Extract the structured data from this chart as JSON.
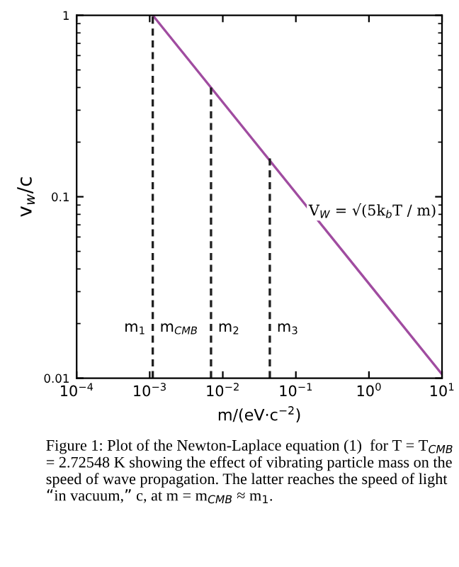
{
  "chart_data": {
    "type": "line",
    "xlabel": "m/(eV·c$^{−2}$)",
    "ylabel": "v$_{w}$/c",
    "log": "xy",
    "xlim": [
      0.0001,
      10
    ],
    "ylim": [
      0.01,
      1
    ],
    "xticks": [
      {
        "value": 0.0001,
        "label": "10$^{−4}$"
      },
      {
        "value": 0.001,
        "label": "10$^{−3}$"
      },
      {
        "value": 0.01,
        "label": "10$^{−2}$"
      },
      {
        "value": 0.1,
        "label": "10$^{−1}$"
      },
      {
        "value": 1,
        "label": "10$^{0}$"
      },
      {
        "value": 10,
        "label": "10$^{1}$"
      }
    ],
    "yticks": [
      0.01,
      0.1,
      1
    ],
    "grid": false,
    "legend": false,
    "series": [
      {
        "color": "#a04ca0",
        "line_style": "solid",
        "x": [
          0.0011,
          10
        ],
        "values": [
          1,
          0.0105
        ]
      },
      {
        "color": "#202020",
        "line_style": "dashed",
        "x": [
          0.0011,
          0.0011
        ],
        "values": [
          0.01,
          1
        ]
      },
      {
        "color": "#202020",
        "line_style": "dashed",
        "x": [
          0.0069,
          0.0069
        ],
        "values": [
          0.01,
          0.41
        ]
      },
      {
        "color": "#202020",
        "line_style": "dashed",
        "x": [
          0.044,
          0.044
        ],
        "values": [
          0.01,
          0.165
        ]
      }
    ],
    "annotations": [
      {
        "text": "m$_{1}$",
        "x": 0.0011,
        "y": 0.019
      },
      {
        "text": "m$_{CMB}$",
        "x": 0.0011,
        "y": 0.019
      },
      {
        "text": "m$_{2}$",
        "x": 0.0069,
        "y": 0.019
      },
      {
        "text": "m$_{3}$",
        "x": 0.044,
        "y": 0.019
      },
      "V$_{W}$ = √(5k$_{b}$T / m)",
      "Figure 1: Plot of the Newton-Laplace equation (1)  for T = T$_{CMB}$ = 2.72548 K showing the effect of vibrating particle mass on the speed of wave propagation. The latter reaches the speed of light “in vacuum,” c, at m = m$_{CMB}$ ≈ m$_{1}$."
    ]
  }
}
